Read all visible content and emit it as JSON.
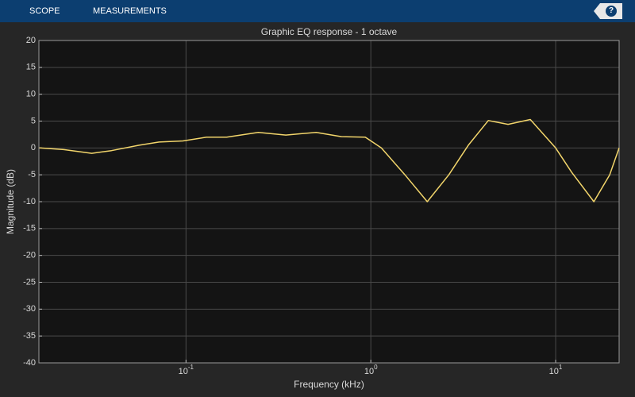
{
  "toolbar": {
    "tabs": [
      "SCOPE",
      "MEASUREMENTS"
    ],
    "help": "?"
  },
  "chart_data": {
    "type": "line",
    "title": "Graphic EQ response - 1 octave",
    "x_label": "Frequency (kHz)",
    "y_label": "Magnitude (dB)",
    "x_scale": "log",
    "grid": true,
    "xlim": [
      0.016,
      22.05
    ],
    "ylim": [
      -40,
      20
    ],
    "xticks": [
      {
        "value": 0.1,
        "label": "10",
        "exponent": "-1"
      },
      {
        "value": 1,
        "label": "10",
        "exponent": "0"
      },
      {
        "value": 10,
        "label": "10",
        "exponent": "1"
      }
    ],
    "yticks": [
      -40,
      -35,
      -30,
      -25,
      -20,
      -15,
      -10,
      -5,
      0,
      5,
      10,
      15,
      20
    ],
    "x": [
      0.0161,
      0.0218,
      0.0309,
      0.0395,
      0.0558,
      0.0715,
      0.0962,
      0.129,
      0.166,
      0.246,
      0.347,
      0.506,
      0.694,
      0.933,
      1.14,
      1.53,
      2.02,
      2.64,
      3.37,
      4.32,
      5.53,
      7.29,
      10,
      12.2,
      16.1,
      19.6,
      22.05
    ],
    "series": [
      {
        "color": "#f2d56b",
        "values": [
          0,
          -0.3,
          -1.0,
          -0.5,
          0.5,
          1.1,
          1.3,
          2.0,
          2.0,
          2.9,
          2.4,
          2.9,
          2.1,
          2.0,
          0.0,
          -5.0,
          -10.0,
          -5.0,
          0.5,
          5.1,
          4.4,
          5.3,
          0.0,
          -4.5,
          -10.0,
          -5.0,
          0.0
        ]
      }
    ]
  }
}
